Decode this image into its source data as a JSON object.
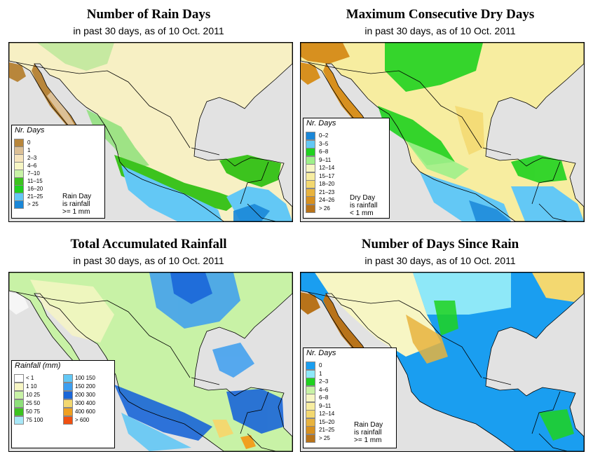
{
  "colors": {
    "ocean": "#e2e2e2",
    "border": "#000000"
  },
  "panels": [
    {
      "title": "Number of Rain Days",
      "subtitle": "in past 30 days, as of  10 Oct. 2011",
      "legend_title": "Nr. Days",
      "legend_items": [
        {
          "label": "0",
          "color": "#b8863b"
        },
        {
          "label": "1",
          "color": "#dcc096"
        },
        {
          "label": "2–3",
          "color": "#f7e5bd"
        },
        {
          "label": "4–6",
          "color": "#f7f6c4"
        },
        {
          "label": "7–10",
          "color": "#c8f2a6"
        },
        {
          "label": "11–15",
          "color": "#3cc31e"
        },
        {
          "label": "16–20",
          "color": "#1fd21f"
        },
        {
          "label": "21–25",
          "color": "#63c8f5"
        },
        {
          "label": "> 25",
          "color": "#1a87d8"
        }
      ],
      "note": [
        "Rain Day",
        "is rainfall",
        ">= 1 mm"
      ]
    },
    {
      "title": "Maximum Consecutive Dry Days",
      "subtitle": "in past 30 days, as of  10 Oct. 2011",
      "legend_title": "Nr. Days",
      "legend_items": [
        {
          "label": "0–2",
          "color": "#1a87d8"
        },
        {
          "label": "3–5",
          "color": "#63c8f5"
        },
        {
          "label": "6–8",
          "color": "#1fd21f"
        },
        {
          "label": "9–11",
          "color": "#9ef08a"
        },
        {
          "label": "12–14",
          "color": "#f7f6c4"
        },
        {
          "label": "15–17",
          "color": "#f7eda0"
        },
        {
          "label": "18–20",
          "color": "#f3d870"
        },
        {
          "label": "21–23",
          "color": "#e8b33e"
        },
        {
          "label": "24–26",
          "color": "#d7901f"
        },
        {
          "label": "> 26",
          "color": "#b8731a"
        }
      ],
      "note": [
        "Dry Day",
        "is rainfall",
        "< 1 mm"
      ]
    },
    {
      "title": "Total Accumulated Rainfall",
      "subtitle": "in past 30 days, as of  10 Oct. 2011",
      "legend_title": "Rainfall (mm)",
      "legend_items": [
        {
          "label": "< 1",
          "color": "#ffffff"
        },
        {
          "label": "1    10",
          "color": "#f7f6c4"
        },
        {
          "label": "10    25",
          "color": "#c8f2a6"
        },
        {
          "label": "25    50",
          "color": "#8ee07a"
        },
        {
          "label": "50    75",
          "color": "#3cc31e"
        },
        {
          "label": "75   100",
          "color": "#a8e8f8"
        },
        {
          "label": "100   150",
          "color": "#63c8f5"
        },
        {
          "label": "150   200",
          "color": "#3c9ef0"
        },
        {
          "label": "200   300",
          "color": "#1a66d8"
        },
        {
          "label": "300   400",
          "color": "#f3d870"
        },
        {
          "label": "400   600",
          "color": "#f0a020"
        },
        {
          "label": "> 600",
          "color": "#f05010"
        }
      ],
      "note": []
    },
    {
      "title": "Number of Days Since Rain",
      "subtitle": "in past 30 days, as of  10 Oct. 2011",
      "legend_title": "Nr. Days",
      "legend_items": [
        {
          "label": "0",
          "color": "#1a9ef0"
        },
        {
          "label": "1",
          "color": "#8ee8f8"
        },
        {
          "label": "2–3",
          "color": "#1fd21f"
        },
        {
          "label": "4–6",
          "color": "#c8f2a6"
        },
        {
          "label": "6–8",
          "color": "#f7f6c4"
        },
        {
          "label": "9–11",
          "color": "#f7eda0"
        },
        {
          "label": "12–14",
          "color": "#f3d870"
        },
        {
          "label": "15–20",
          "color": "#e8b33e"
        },
        {
          "label": "21–25",
          "color": "#d7901f"
        },
        {
          "label": "> 25",
          "color": "#b8731a"
        }
      ],
      "note": [
        "Rain Day",
        "is rainfall",
        ">= 1 mm"
      ]
    }
  ]
}
